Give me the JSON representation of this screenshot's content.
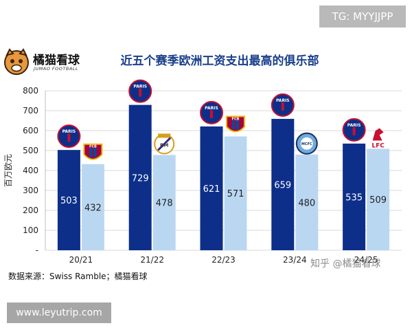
{
  "watermark_top": "TG: MYYJJPP",
  "brand": {
    "name": "橘猫看球",
    "sub": "JUMAO FOOTBALL"
  },
  "source_text": "数据来源：Swiss Ramble；橘猫看球",
  "watermark_zhihu": "知乎 @橘猫看球",
  "watermark_url": "www.leyutrip.com",
  "colors": {
    "dark": "#0d2f8a",
    "light": "#bad7f2",
    "title": "#1a3f8c"
  },
  "chart_data": {
    "type": "bar",
    "title": "近五个赛季欧洲工资支出最高的俱乐部",
    "ylabel": "百万欧元",
    "xlabel": "",
    "ylim": [
      0,
      800
    ],
    "yticks": [
      "-",
      "100",
      "200",
      "300",
      "400",
      "500",
      "600",
      "700",
      "800"
    ],
    "grid": true,
    "categories": [
      "20/21",
      "21/22",
      "22/23",
      "23/24",
      "24/25"
    ],
    "series": [
      {
        "values": [
          503,
          729,
          621,
          659,
          535
        ],
        "clubs": [
          "PSG",
          "PSG",
          "PSG",
          "PSG",
          "PSG"
        ]
      },
      {
        "values": [
          432,
          478,
          571,
          480,
          509
        ],
        "clubs": [
          "FCB",
          "Real Madrid",
          "FCB",
          "Man City",
          "LFC"
        ]
      }
    ],
    "badge_text": {
      "PSG": "PARIS",
      "FCB": "FCB",
      "Real Madrid": "RM",
      "Man City": "MCFC",
      "LFC": "LFC"
    }
  }
}
